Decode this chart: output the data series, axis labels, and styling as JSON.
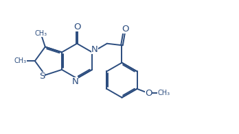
{
  "background_color": "#ffffff",
  "line_color": "#2b4c7e",
  "line_width": 1.4,
  "font_size": 8.5,
  "figsize": [
    3.48,
    1.96
  ],
  "dpi": 100,
  "xlim": [
    0,
    9.5
  ],
  "ylim": [
    0,
    5.5
  ]
}
